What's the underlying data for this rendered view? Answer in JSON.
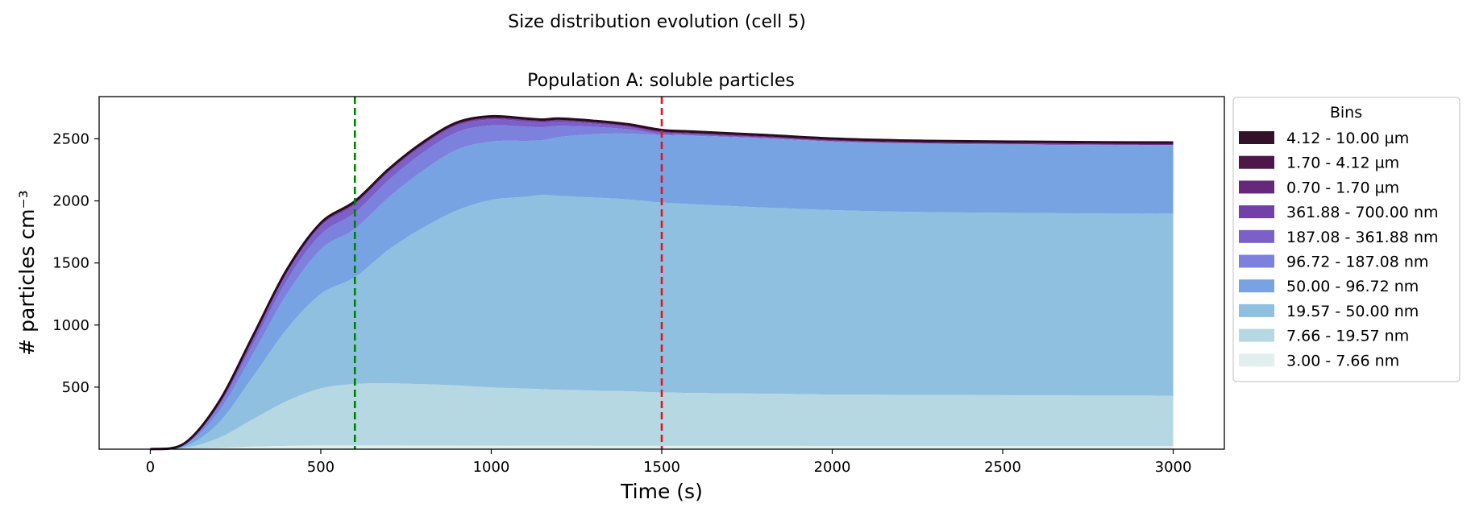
{
  "figure": {
    "suptitle": "Size distribution evolution (cell 5)"
  },
  "chart_data": {
    "type": "area",
    "title": "Population A: soluble particles",
    "xlabel": "Time (s)",
    "ylabel": "# particles cm⁻³",
    "xlim": [
      -150,
      3150
    ],
    "ylim": [
      0,
      2840
    ],
    "x_ticks": [
      0,
      500,
      1000,
      1500,
      2000,
      2500,
      3000
    ],
    "x_tick_labels": [
      "0",
      "500",
      "1000",
      "1500",
      "2000",
      "2500",
      "3000"
    ],
    "y_ticks": [
      500,
      1000,
      1500,
      2000,
      2500
    ],
    "y_tick_labels": [
      "500",
      "1000",
      "1500",
      "2000",
      "2500"
    ],
    "grid": false,
    "legend_title": "Bins",
    "legend_placement": "outside right, top",
    "x": [
      0,
      100,
      200,
      300,
      400,
      500,
      600,
      700,
      800,
      900,
      1000,
      1100,
      1150,
      1200,
      1300,
      1400,
      1500,
      1600,
      1800,
      2000,
      2200,
      2400,
      2600,
      2800,
      3000
    ],
    "series": [
      {
        "name": "3.00 - 7.66 nm",
        "color": "#e3efef",
        "values": [
          0,
          2,
          10,
          20,
          27,
          30,
          30,
          30,
          29,
          29,
          28,
          28,
          28,
          28,
          27,
          27,
          27,
          27,
          27,
          26,
          26,
          26,
          26,
          26,
          26
        ]
      },
      {
        "name": "7.66 - 19.57 nm",
        "color": "#b6d8e2",
        "values": [
          0,
          8,
          80,
          220,
          360,
          460,
          495,
          500,
          495,
          485,
          470,
          460,
          455,
          450,
          445,
          440,
          430,
          425,
          420,
          415,
          412,
          410,
          408,
          406,
          405
        ]
      },
      {
        "name": "19.57 - 50.00 nm",
        "color": "#8fc0e0",
        "values": [
          0,
          10,
          120,
          340,
          580,
          760,
          860,
          1080,
          1260,
          1410,
          1510,
          1545,
          1565,
          1562,
          1555,
          1545,
          1530,
          1520,
          1500,
          1485,
          1475,
          1470,
          1468,
          1466,
          1465
        ]
      },
      {
        "name": "50.00 - 96.72 nm",
        "color": "#77a3e3",
        "values": [
          0,
          12,
          90,
          180,
          280,
          360,
          390,
          420,
          460,
          490,
          470,
          450,
          440,
          475,
          510,
          530,
          540,
          550,
          555,
          550,
          550,
          550,
          550,
          550,
          550
        ]
      },
      {
        "name": "96.72 - 187.08 nm",
        "color": "#7b81dc",
        "values": [
          0,
          6,
          40,
          80,
          110,
          120,
          130,
          140,
          145,
          140,
          130,
          115,
          105,
          90,
          60,
          35,
          10,
          5,
          3,
          2,
          1,
          1,
          1,
          1,
          1
        ]
      },
      {
        "name": "187.08 - 361.88 nm",
        "color": "#7a60c8",
        "values": [
          0,
          4,
          22,
          45,
          60,
          65,
          65,
          62,
          58,
          53,
          48,
          42,
          38,
          34,
          25,
          18,
          12,
          8,
          5,
          3,
          2,
          2,
          2,
          2,
          2
        ]
      },
      {
        "name": "361.88 - 700.00 nm",
        "color": "#7140a8",
        "values": [
          0,
          1,
          5,
          8,
          10,
          11,
          11,
          10,
          10,
          9,
          9,
          8,
          8,
          8,
          7,
          7,
          6,
          6,
          5,
          5,
          5,
          5,
          5,
          5,
          5
        ]
      },
      {
        "name": "0.70 - 1.70 µm",
        "color": "#66287b",
        "values": [
          0,
          1,
          3,
          5,
          6,
          6,
          6,
          6,
          6,
          6,
          6,
          6,
          6,
          6,
          6,
          6,
          6,
          6,
          6,
          6,
          6,
          6,
          6,
          6,
          6
        ]
      },
      {
        "name": "1.70 - 4.12 µm",
        "color": "#4d1748",
        "values": [
          0,
          1,
          2,
          4,
          5,
          5,
          5,
          5,
          5,
          5,
          5,
          5,
          5,
          5,
          5,
          5,
          5,
          5,
          5,
          5,
          5,
          5,
          5,
          5,
          5
        ]
      },
      {
        "name": "4.12 - 10.00 µm",
        "color": "#331129",
        "values": [
          0,
          1,
          3,
          4,
          5,
          5,
          5,
          5,
          5,
          5,
          5,
          5,
          5,
          5,
          5,
          5,
          5,
          5,
          5,
          5,
          5,
          5,
          5,
          5,
          5
        ]
      }
    ],
    "vertical_lines": [
      {
        "x": 600,
        "color": "#008000",
        "style": "dashed"
      },
      {
        "x": 1500,
        "color": "#e8131a",
        "style": "dashed"
      }
    ]
  }
}
